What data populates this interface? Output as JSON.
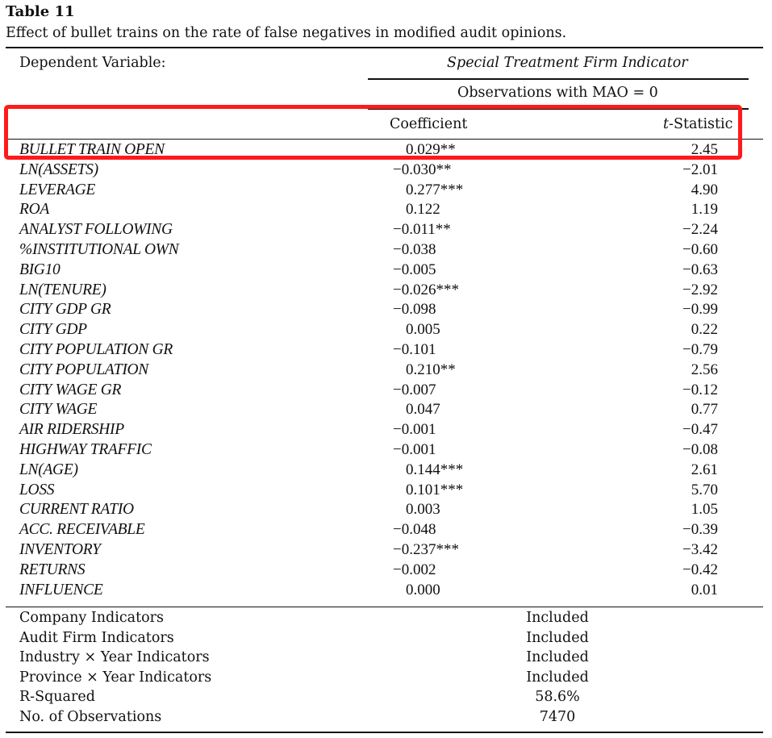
{
  "table": {
    "label": "Table 11",
    "caption": "Effect of bullet trains on the rate of false negatives in modified audit opinions.",
    "dependent_label": "Dependent Variable:",
    "dependent_value": "Special Treatment Firm Indicator",
    "sample": "Observations with MAO = 0",
    "col_coef": "Coefficient",
    "col_t_italic": "t",
    "col_t_rest": "-Statistic",
    "rows": [
      {
        "var": "BULLET TRAIN OPEN",
        "coef": "0.029**",
        "t": "2.45"
      },
      {
        "var": "LN(ASSETS)",
        "coef": "−0.030**",
        "t": "−2.01"
      },
      {
        "var": "LEVERAGE",
        "coef": "0.277***",
        "t": "4.90"
      },
      {
        "var": "ROA",
        "coef": "0.122",
        "t": "1.19"
      },
      {
        "var": "ANALYST FOLLOWING",
        "coef": "−0.011**",
        "t": "−2.24"
      },
      {
        "var": "%INSTITUTIONAL OWN",
        "coef": "−0.038",
        "t": "−0.60"
      },
      {
        "var": "BIG10",
        "coef": "−0.005",
        "t": "−0.63"
      },
      {
        "var": "LN(TENURE)",
        "coef": "−0.026***",
        "t": "−2.92"
      },
      {
        "var": "CITY GDP GR",
        "coef": "−0.098",
        "t": "−0.99"
      },
      {
        "var": "CITY GDP",
        "coef": "0.005",
        "t": "0.22"
      },
      {
        "var": "CITY POPULATION GR",
        "coef": "−0.101",
        "t": "−0.79"
      },
      {
        "var": "CITY POPULATION",
        "coef": "0.210**",
        "t": "2.56"
      },
      {
        "var": "CITY WAGE GR",
        "coef": "−0.007",
        "t": "−0.12"
      },
      {
        "var": "CITY WAGE",
        "coef": "0.047",
        "t": "0.77"
      },
      {
        "var": "AIR RIDERSHIP",
        "coef": "−0.001",
        "t": "−0.47"
      },
      {
        "var": "HIGHWAY TRAFFIC",
        "coef": "−0.001",
        "t": "−0.08"
      },
      {
        "var": "LN(AGE)",
        "coef": "0.144***",
        "t": "2.61"
      },
      {
        "var": "LOSS",
        "coef": "0.101***",
        "t": "5.70"
      },
      {
        "var": "CURRENT RATIO",
        "coef": "0.003",
        "t": "1.05"
      },
      {
        "var": "ACC. RECEIVABLE",
        "coef": "−0.048",
        "t": "−0.39"
      },
      {
        "var": "INVENTORY",
        "coef": "−0.237***",
        "t": "−3.42"
      },
      {
        "var": "RETURNS",
        "coef": "−0.002",
        "t": "−0.42"
      },
      {
        "var": "INFLUENCE",
        "coef": "0.000",
        "t": "0.01"
      }
    ],
    "controls": [
      {
        "label": "Company Indicators",
        "value": "Included"
      },
      {
        "label": "Audit Firm Indicators",
        "value": "Included"
      },
      {
        "label": "Industry × Year Indicators",
        "value": "Included"
      },
      {
        "label": "Province × Year Indicators",
        "value": "Included"
      },
      {
        "label": "R-Squared",
        "value": "58.6%"
      },
      {
        "label": "No. of Observations",
        "value": "7470"
      }
    ]
  }
}
